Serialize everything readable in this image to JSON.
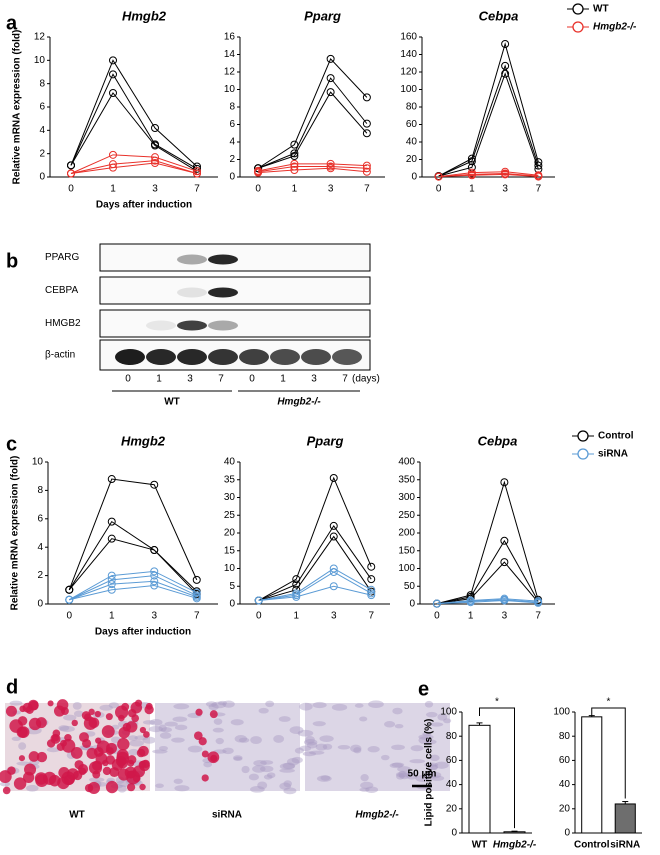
{
  "panels": [
    "a",
    "b",
    "c",
    "d",
    "e"
  ],
  "blot": {
    "rows": [
      "PPARG",
      "CEBPA",
      "HMGB2",
      "β-actin"
    ],
    "lanes": [
      "0",
      "1",
      "3",
      "7",
      "0",
      "1",
      "3",
      "7"
    ],
    "unit": "(days)",
    "groups": [
      "WT",
      "Hmgb2-/-"
    ]
  },
  "micrographs": {
    "labels": [
      "WT",
      "siRNA",
      "Hmgb2-/-"
    ],
    "scale_bar": "50 μm"
  },
  "chart_data": [
    {
      "type": "line",
      "title": "Hmgb2",
      "ylabel": "Relative mRNA expression (fold)",
      "xlabel": "Days after induction",
      "categories": [
        "0",
        "1",
        "3",
        "7"
      ],
      "ylim": [
        0,
        12
      ],
      "yticks": [
        0,
        2,
        4,
        6,
        8,
        10,
        12
      ],
      "series": [
        {
          "color": "#000000",
          "values": [
            [
              1,
              10,
              4.2,
              0.9
            ],
            [
              1,
              8.8,
              2.8,
              0.7
            ],
            [
              1,
              7.2,
              2.7,
              0.5
            ]
          ]
        },
        {
          "color": "#e8312a",
          "values": [
            [
              0.3,
              1.9,
              1.7,
              0.5
            ],
            [
              0.3,
              1.1,
              1.4,
              0.3
            ],
            [
              0.3,
              0.8,
              1.2,
              0.3
            ]
          ]
        }
      ]
    },
    {
      "type": "line",
      "title": "Pparg",
      "categories": [
        "0",
        "1",
        "3",
        "7"
      ],
      "ylim": [
        0,
        16
      ],
      "yticks": [
        0,
        2,
        4,
        6,
        8,
        10,
        12,
        14,
        16
      ],
      "series": [
        {
          "color": "#000000",
          "values": [
            [
              1,
              3.7,
              13.5,
              9.1
            ],
            [
              1,
              2.7,
              11.3,
              6.1
            ],
            [
              1,
              2.4,
              9.7,
              5.0
            ]
          ]
        },
        {
          "color": "#e8312a",
          "values": [
            [
              0.7,
              1.5,
              1.5,
              1.3
            ],
            [
              0.6,
              1.2,
              1.2,
              1.0
            ],
            [
              0.5,
              0.8,
              1.0,
              0.6
            ]
          ]
        }
      ]
    },
    {
      "type": "line",
      "title": "Cebpa",
      "categories": [
        "0",
        "1",
        "3",
        "7"
      ],
      "ylim": [
        0,
        160
      ],
      "yticks": [
        0,
        20,
        40,
        60,
        80,
        100,
        120,
        140,
        160
      ],
      "legend": "upper right",
      "series": [
        {
          "name": "WT",
          "color": "#000000",
          "values": [
            [
              1,
              21,
              152,
              17
            ],
            [
              1,
              18,
              127,
              13
            ],
            [
              1,
              11,
              118,
              9
            ]
          ]
        },
        {
          "name": "Hmgb2-/-",
          "color": "#e8312a",
          "values": [
            [
              0.5,
              5,
              6,
              2
            ],
            [
              0.5,
              3,
              4,
              1
            ],
            [
              0.5,
              2,
              3,
              0.5
            ]
          ]
        }
      ]
    },
    {
      "type": "line",
      "title": "Hmgb2",
      "ylabel": "Relative mRNA expression (fold)",
      "xlabel": "Days after induction",
      "categories": [
        "0",
        "1",
        "3",
        "7"
      ],
      "ylim": [
        0,
        10
      ],
      "yticks": [
        0,
        2,
        4,
        6,
        8,
        10
      ],
      "series": [
        {
          "color": "#000000",
          "values": [
            [
              1,
              8.8,
              8.4,
              1.7
            ],
            [
              1,
              5.8,
              3.8,
              0.9
            ],
            [
              1,
              4.6,
              3.8,
              0.7
            ]
          ]
        },
        {
          "color": "#5b9bd5",
          "values": [
            [
              0.3,
              2.0,
              2.3,
              0.8
            ],
            [
              0.3,
              1.7,
              2.0,
              0.6
            ],
            [
              0.3,
              1.4,
              1.6,
              0.5
            ],
            [
              0.3,
              1.0,
              1.3,
              0.4
            ]
          ]
        }
      ]
    },
    {
      "type": "line",
      "title": "Pparg",
      "categories": [
        "0",
        "1",
        "3",
        "7"
      ],
      "ylim": [
        0,
        40
      ],
      "yticks": [
        0,
        5,
        10,
        15,
        20,
        25,
        30,
        35,
        40
      ],
      "series": [
        {
          "color": "#000000",
          "values": [
            [
              1,
              7,
              35.5,
              10.5
            ],
            [
              1,
              5.5,
              22,
              7
            ],
            [
              1,
              4,
              19,
              3.5
            ]
          ]
        },
        {
          "color": "#5b9bd5",
          "values": [
            [
              1,
              3,
              10,
              4
            ],
            [
              1,
              2.5,
              9,
              3
            ],
            [
              1,
              2,
              5,
              2.5
            ]
          ]
        }
      ]
    },
    {
      "type": "line",
      "title": "Cebpa",
      "categories": [
        "0",
        "1",
        "3",
        "7"
      ],
      "ylim": [
        0,
        400
      ],
      "yticks": [
        0,
        50,
        100,
        150,
        200,
        250,
        300,
        350,
        400
      ],
      "legend": "upper right",
      "series": [
        {
          "name": "Control",
          "color": "#000000",
          "values": [
            [
              1,
              25,
              343,
              12
            ],
            [
              1,
              20,
              178,
              8
            ],
            [
              1,
              15,
              118,
              5
            ]
          ]
        },
        {
          "name": "siRNA",
          "color": "#5b9bd5",
          "values": [
            [
              1,
              10,
              15,
              8
            ],
            [
              1,
              8,
              12,
              5
            ],
            [
              1,
              5,
              10,
              3
            ]
          ]
        }
      ]
    },
    {
      "type": "bar",
      "ylabel": "Lipid positive cells (%)",
      "categories": [
        "WT",
        "Hmgb2-/-"
      ],
      "values": [
        89,
        1
      ],
      "errors": [
        2,
        0.5
      ],
      "colors": [
        "#ffffff",
        "#ffffff"
      ],
      "ylim": [
        0,
        100
      ],
      "yticks": [
        0,
        20,
        40,
        60,
        80,
        100
      ],
      "annotation": "*"
    },
    {
      "type": "bar",
      "categories": [
        "Control",
        "siRNA"
      ],
      "values": [
        96,
        24
      ],
      "errors": [
        1,
        2
      ],
      "colors": [
        "#ffffff",
        "#6e6e6e"
      ],
      "ylim": [
        0,
        100
      ],
      "yticks": [
        0,
        20,
        40,
        60,
        80,
        100
      ],
      "annotation": "*"
    }
  ]
}
